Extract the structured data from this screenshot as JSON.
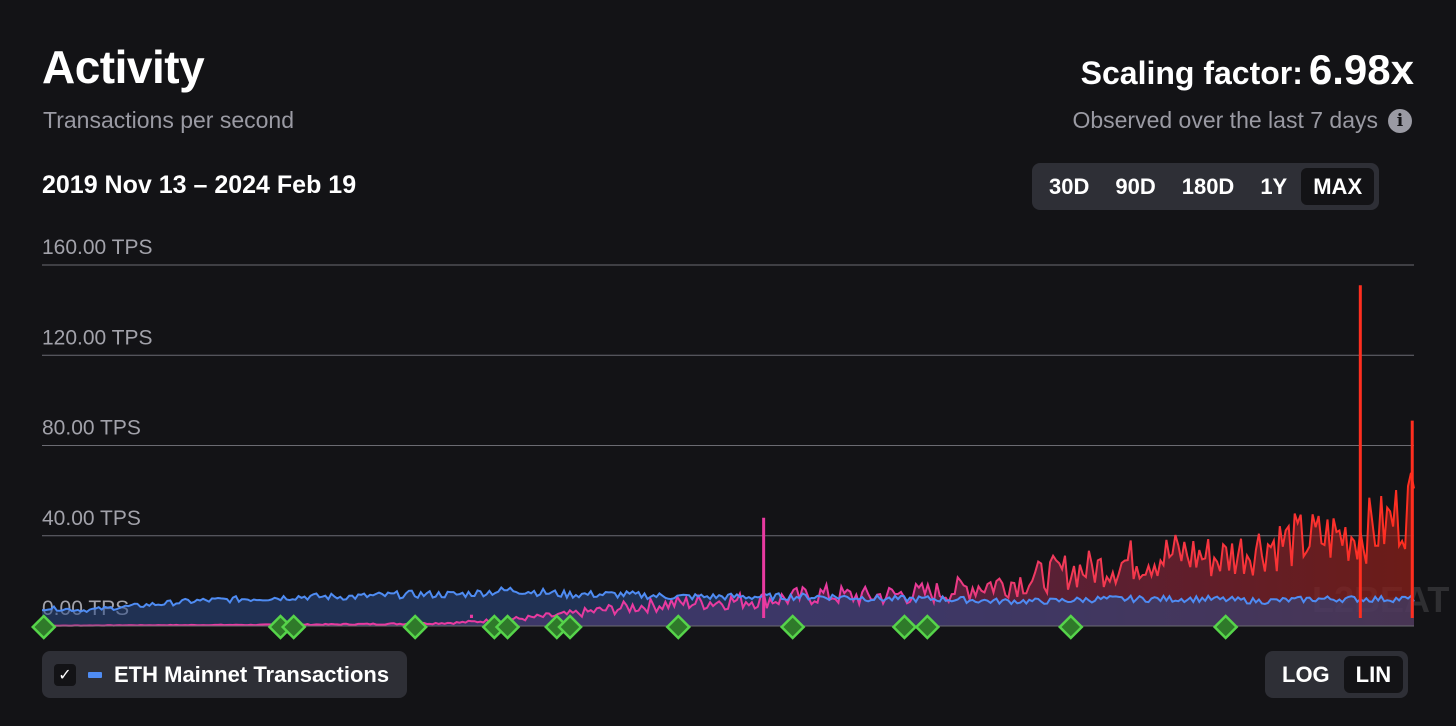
{
  "header": {
    "title": "Activity",
    "subtitle": "Transactions per second",
    "date_range": "2019 Nov 13 – 2024 Feb 19",
    "scaling_label": "Scaling factor:",
    "scaling_value": "6.98x",
    "observed_text": "Observed over the last 7 days",
    "info_icon": "i"
  },
  "time_range": {
    "options": [
      "30D",
      "90D",
      "180D",
      "1Y",
      "MAX"
    ],
    "selected": "MAX"
  },
  "scale_toggle": {
    "options": [
      "LOG",
      "LIN"
    ],
    "selected": "LIN"
  },
  "legend": {
    "checkbox_mark": "✓",
    "label": "ETH Mainnet Transactions",
    "checked": true
  },
  "watermark": "L2BEAT",
  "colors": {
    "background": "#131316",
    "eth": "#4f8cf3",
    "l2_early": "#e83aa0",
    "l2_late": "#ff2e1f",
    "marker": "#56d44a",
    "grid": "#6b6b72"
  },
  "chart_data": {
    "type": "area",
    "title": "Activity",
    "subtitle": "Transactions per second",
    "x_range": [
      "2019-11-13",
      "2024-02-19"
    ],
    "ylim": [
      0,
      160
    ],
    "y_ticks": [
      0,
      40,
      80,
      120,
      160
    ],
    "y_tick_labels": [
      "0.00 TPS",
      "40.00 TPS",
      "80.00 TPS",
      "120.00 TPS",
      "160.00 TPS"
    ],
    "grid": true,
    "series": [
      {
        "name": "ETH Mainnet Transactions",
        "x": [
          "2019-11-13",
          "2020-01-01",
          "2020-03-01",
          "2020-05-01",
          "2020-07-01",
          "2020-09-01",
          "2020-11-01",
          "2021-01-01",
          "2021-03-01",
          "2021-05-01",
          "2021-07-01",
          "2021-09-01",
          "2021-11-01",
          "2022-01-01",
          "2022-03-01",
          "2022-05-01",
          "2022-07-01",
          "2022-09-01",
          "2022-11-01",
          "2023-01-01",
          "2023-03-01",
          "2023-05-01",
          "2023-07-01",
          "2023-09-01",
          "2023-11-01",
          "2024-01-01",
          "2024-02-19"
        ],
        "values": [
          8,
          7,
          9,
          11,
          12,
          13,
          13,
          14,
          14,
          16,
          14,
          14,
          13,
          13,
          13,
          13,
          12,
          12,
          11,
          11,
          12,
          12,
          12,
          11,
          12,
          12,
          12
        ]
      },
      {
        "x": [
          "2019-11-13",
          "2020-01-01",
          "2020-03-01",
          "2020-05-01",
          "2020-07-01",
          "2020-09-01",
          "2020-11-01",
          "2021-01-01",
          "2021-03-01",
          "2021-05-01",
          "2021-07-01",
          "2021-09-01",
          "2021-11-01",
          "2022-01-01",
          "2022-03-01",
          "2022-04-15",
          "2022-06-01",
          "2022-07-15",
          "2022-09-01",
          "2022-10-15",
          "2022-12-01",
          "2023-01-15",
          "2023-03-01",
          "2023-04-15",
          "2023-06-01",
          "2023-07-15",
          "2023-09-01",
          "2023-10-15",
          "2023-12-01",
          "2024-01-15",
          "2024-02-19"
        ],
        "values": [
          0.1,
          0.2,
          0.3,
          0.4,
          0.5,
          0.6,
          0.8,
          1,
          1.5,
          3,
          5,
          8,
          10,
          11,
          12,
          14,
          13,
          14,
          15,
          18,
          20,
          24,
          26,
          30,
          32,
          30,
          36,
          38,
          40,
          44,
          55
        ]
      }
    ],
    "spikes": [
      {
        "x": "2021-03-15",
        "value": 5
      },
      {
        "x": "2022-02-10",
        "value": 48
      },
      {
        "x": "2023-12-20",
        "value": 151
      },
      {
        "x": "2024-02-17",
        "value": 91
      }
    ],
    "event_markers": [
      "2019-11-15",
      "2020-08-10",
      "2020-08-25",
      "2021-01-10",
      "2021-04-10",
      "2021-04-25",
      "2021-06-20",
      "2021-07-05",
      "2021-11-05",
      "2022-03-15",
      "2022-07-20",
      "2022-08-15",
      "2023-01-25",
      "2023-07-20"
    ]
  }
}
